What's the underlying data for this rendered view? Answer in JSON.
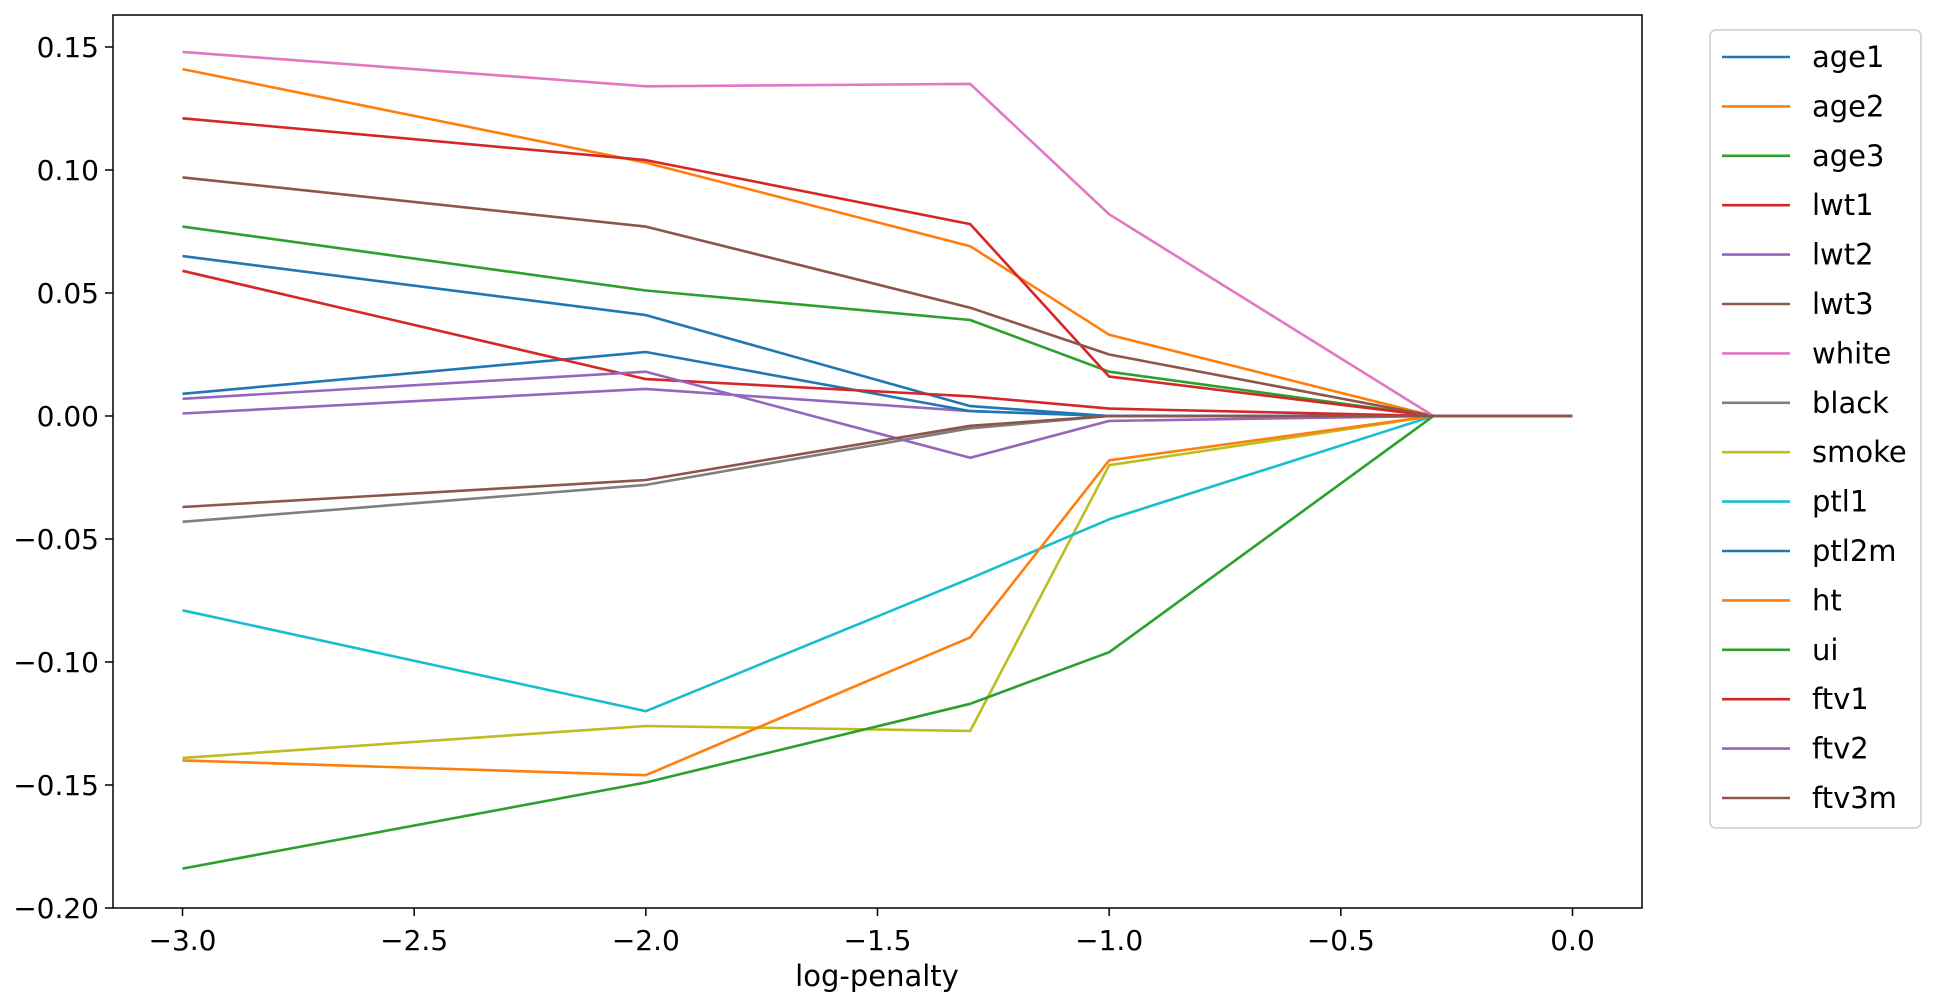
{
  "chart_data": {
    "type": "line",
    "title": "",
    "xlabel": "log-penalty",
    "ylabel": "",
    "xlim": [
      -3.15,
      0.15
    ],
    "ylim": [
      -0.2,
      0.163
    ],
    "xticks": [
      -3.0,
      -2.5,
      -2.0,
      -1.5,
      -1.0,
      -0.5,
      0.0
    ],
    "xtick_labels": [
      "−3.0",
      "−2.5",
      "−2.0",
      "−1.5",
      "−1.0",
      "−0.5",
      "0.0"
    ],
    "yticks": [
      -0.2,
      -0.15,
      -0.1,
      -0.05,
      0.0,
      0.05,
      0.1,
      0.15
    ],
    "ytick_labels": [
      "−0.20",
      "−0.15",
      "−0.10",
      "−0.05",
      "0.00",
      "0.05",
      "0.10",
      "0.15"
    ],
    "grid": false,
    "legend_position": "outside-right",
    "x": [
      -3.0,
      -2.0,
      -1.3,
      -1.0,
      -0.3,
      0.0
    ],
    "series": [
      {
        "name": "age1",
        "color": "#1f77b4",
        "values": [
          0.065,
          0.041,
          0.004,
          0.0,
          0.0,
          0.0
        ]
      },
      {
        "name": "age2",
        "color": "#ff7f0e",
        "values": [
          0.141,
          0.103,
          0.069,
          0.033,
          0.0,
          0.0
        ]
      },
      {
        "name": "age3",
        "color": "#2ca02c",
        "values": [
          0.077,
          0.051,
          0.039,
          0.018,
          0.0,
          0.0
        ]
      },
      {
        "name": "lwt1",
        "color": "#d62728",
        "values": [
          0.121,
          0.104,
          0.078,
          0.016,
          0.0,
          0.0
        ]
      },
      {
        "name": "lwt2",
        "color": "#9467bd",
        "values": [
          0.001,
          0.011,
          0.002,
          0.0,
          0.0,
          0.0
        ]
      },
      {
        "name": "lwt3",
        "color": "#8c564b",
        "values": [
          0.097,
          0.077,
          0.044,
          0.025,
          0.0,
          0.0
        ]
      },
      {
        "name": "white",
        "color": "#e377c2",
        "values": [
          0.148,
          0.134,
          0.135,
          0.082,
          0.0,
          0.0
        ]
      },
      {
        "name": "black",
        "color": "#7f7f7f",
        "values": [
          -0.043,
          -0.028,
          -0.005,
          0.0,
          0.0,
          0.0
        ]
      },
      {
        "name": "smoke",
        "color": "#bcbd22",
        "values": [
          -0.139,
          -0.126,
          -0.128,
          -0.02,
          0.0,
          0.0
        ]
      },
      {
        "name": "ptl1",
        "color": "#17becf",
        "values": [
          -0.079,
          -0.12,
          -0.066,
          -0.042,
          0.0,
          0.0
        ]
      },
      {
        "name": "ptl2m",
        "color": "#1f77b4",
        "values": [
          0.009,
          0.026,
          0.002,
          0.0,
          0.0,
          0.0
        ]
      },
      {
        "name": "ht",
        "color": "#ff7f0e",
        "values": [
          -0.14,
          -0.146,
          -0.09,
          -0.018,
          0.0,
          0.0
        ]
      },
      {
        "name": "ui",
        "color": "#2ca02c",
        "values": [
          -0.184,
          -0.149,
          -0.117,
          -0.096,
          0.0,
          0.0
        ]
      },
      {
        "name": "ftv1",
        "color": "#d62728",
        "values": [
          0.059,
          0.015,
          0.008,
          0.003,
          0.0,
          0.0
        ]
      },
      {
        "name": "ftv2",
        "color": "#9467bd",
        "values": [
          0.007,
          0.018,
          -0.017,
          -0.002,
          0.0,
          0.0
        ]
      },
      {
        "name": "ftv3m",
        "color": "#8c564b",
        "values": [
          -0.037,
          -0.026,
          -0.004,
          0.0,
          0.0,
          0.0
        ]
      }
    ]
  }
}
